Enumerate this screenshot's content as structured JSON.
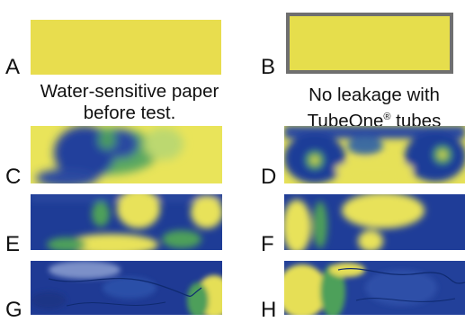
{
  "panels": [
    {
      "letter": "A"
    },
    {
      "letter": "B"
    },
    {
      "letter": "C"
    },
    {
      "letter": "D"
    },
    {
      "letter": "E"
    },
    {
      "letter": "F"
    },
    {
      "letter": "G"
    },
    {
      "letter": "H"
    }
  ],
  "captions": {
    "left_line1": "Water-sensitive paper",
    "left_line2": "before test.",
    "right_line1": "No leakage with",
    "right_line2_prefix": "TubeOne",
    "right_line2_reg": "®",
    "right_line2_suffix": " tubes"
  },
  "colors": {
    "paper_yellow": "#e6dc4a",
    "stain_blue": "#1f3a9a",
    "stain_green": "#3a9a55"
  }
}
